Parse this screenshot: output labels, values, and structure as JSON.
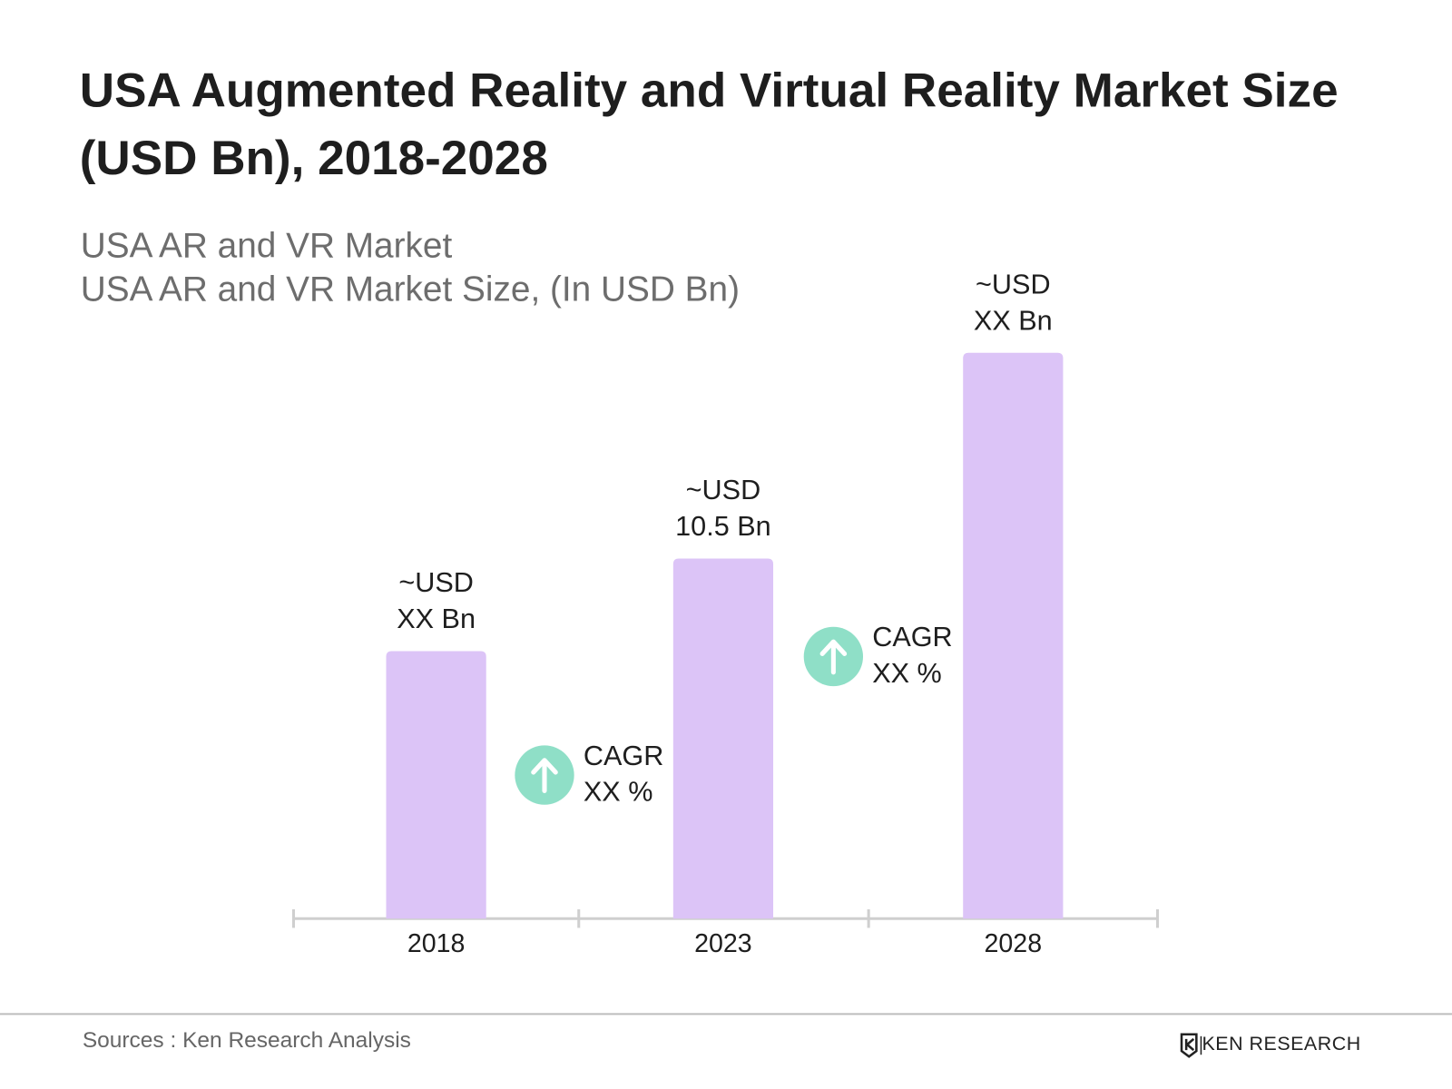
{
  "chart_data": {
    "type": "bar",
    "title": "USA Augmented Reality and Virtual Reality Market Size (USD Bn), 2018-2028",
    "subtitle": [
      "USA AR and VR Market",
      "USA AR and VR Market Size, (In USD Bn)"
    ],
    "categories": [
      "2018",
      "2023",
      "2028"
    ],
    "values": [
      7.8,
      10.5,
      16.5
    ],
    "value_labels": [
      "~USD\nXX Bn",
      "~USD\n10.5 Bn",
      "~USD\nXX Bn"
    ],
    "color": "#dcc4f7",
    "annotations": [
      [
        "CAGR",
        "XX %"
      ],
      [
        "CAGR",
        "XX %"
      ]
    ],
    "source": "Sources : Ken Research Analysis",
    "logo": "KEN RESEARCH"
  }
}
